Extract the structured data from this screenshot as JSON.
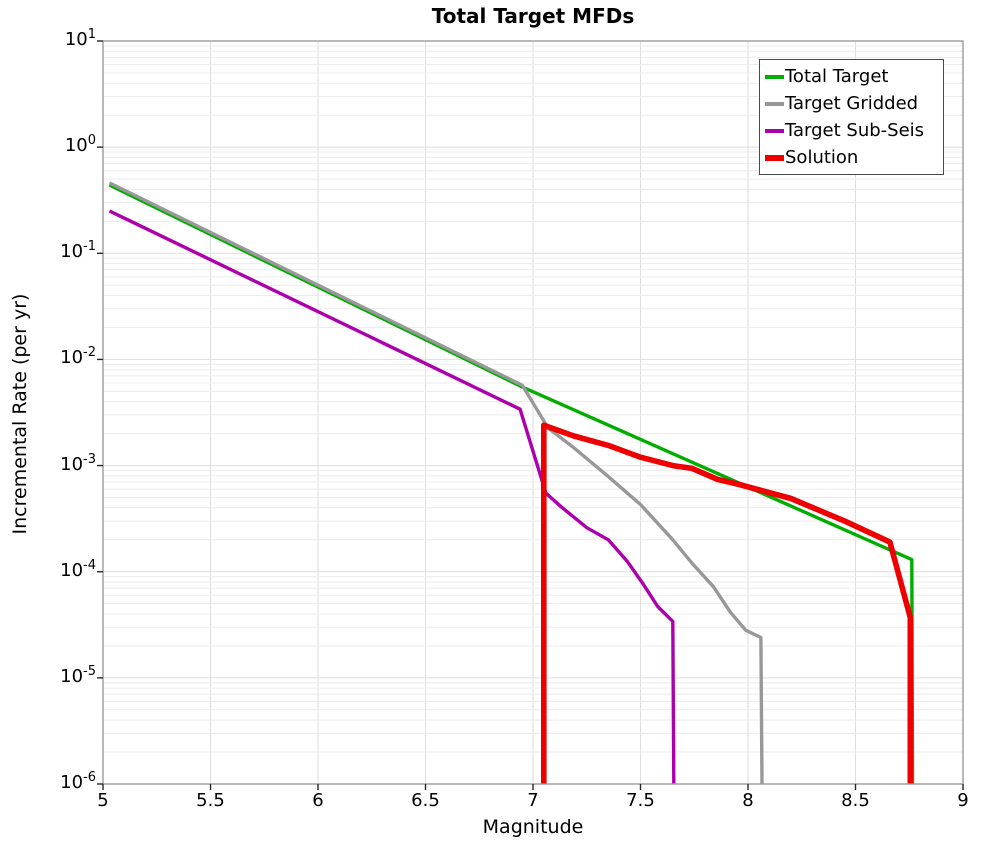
{
  "title": "Total Target MFDs",
  "axes": {
    "x_label": "Magnitude",
    "y_label": "Incremental Rate (per yr)",
    "x_ticks": [
      "5",
      "5.5",
      "6",
      "6.5",
      "7",
      "7.5",
      "8",
      "8.5",
      "9"
    ],
    "x_tick_values": [
      5,
      5.5,
      6,
      6.5,
      7,
      7.5,
      8,
      8.5,
      9
    ],
    "y_tick_base": "10",
    "y_tick_exponents": [
      "1",
      "0",
      "-1",
      "-2",
      "-3",
      "-4",
      "-5",
      "-6"
    ],
    "grid_minor_color": "#ececec",
    "grid_major_color": "#dedede",
    "border_color": "#9b9b9b",
    "tick_color": "#262626"
  },
  "chart_data": {
    "type": "line",
    "title": "Total Target MFDs",
    "xlabel": "Magnitude",
    "ylabel": "Incremental Rate (per yr)",
    "x_range": [
      5,
      9
    ],
    "y_range_log": [
      1e-06,
      10
    ],
    "y_scale": "log",
    "grid": true,
    "legend_position": "top-right",
    "series": [
      {
        "name": "Total Target",
        "color": "#00AD00",
        "width": 3.4,
        "points": [
          [
            5.03,
            0.44
          ],
          [
            6.95,
            0.0055
          ],
          [
            8.762,
            0.00013
          ],
          [
            8.765,
            1e-06
          ]
        ]
      },
      {
        "name": "Target Gridded",
        "color": "#989898",
        "width": 3.4,
        "points": [
          [
            5.03,
            0.46
          ],
          [
            6.95,
            0.0057
          ],
          [
            7.07,
            0.00226
          ],
          [
            7.19,
            0.00147
          ],
          [
            7.34,
            0.00082
          ],
          [
            7.5,
            0.00043
          ],
          [
            7.65,
            0.0002
          ],
          [
            7.74,
            0.00012
          ],
          [
            7.84,
            7.2e-05
          ],
          [
            7.92,
            4.1e-05
          ],
          [
            7.99,
            2.8e-05
          ],
          [
            8.06,
            2.4e-05
          ],
          [
            8.065,
            1e-06
          ]
        ]
      },
      {
        "name": "Target Sub-Seis",
        "color": "#AD00AD",
        "width": 3.4,
        "points": [
          [
            5.03,
            0.25
          ],
          [
            6.94,
            0.0034
          ],
          [
            7.06,
            0.00055
          ],
          [
            7.13,
            0.00041
          ],
          [
            7.25,
            0.00026
          ],
          [
            7.35,
            0.0002
          ],
          [
            7.44,
            0.000124
          ],
          [
            7.51,
            7.8e-05
          ],
          [
            7.58,
            4.7e-05
          ],
          [
            7.65,
            3.4e-05
          ],
          [
            7.655,
            1e-06
          ]
        ]
      },
      {
        "name": "Solution",
        "color": "#EE0000",
        "width": 5.6,
        "points": [
          [
            7.05,
            1e-06
          ],
          [
            7.05,
            0.0024
          ],
          [
            7.19,
            0.0019
          ],
          [
            7.35,
            0.00155
          ],
          [
            7.5,
            0.0012
          ],
          [
            7.65,
            0.001
          ],
          [
            7.74,
            0.00094
          ],
          [
            7.86,
            0.00074
          ],
          [
            7.95,
            0.00067
          ],
          [
            8.2,
            0.00049
          ],
          [
            8.45,
            0.0003
          ],
          [
            8.66,
            0.00019
          ],
          [
            8.755,
            3.7e-05
          ],
          [
            8.755,
            1e-06
          ]
        ]
      }
    ]
  }
}
